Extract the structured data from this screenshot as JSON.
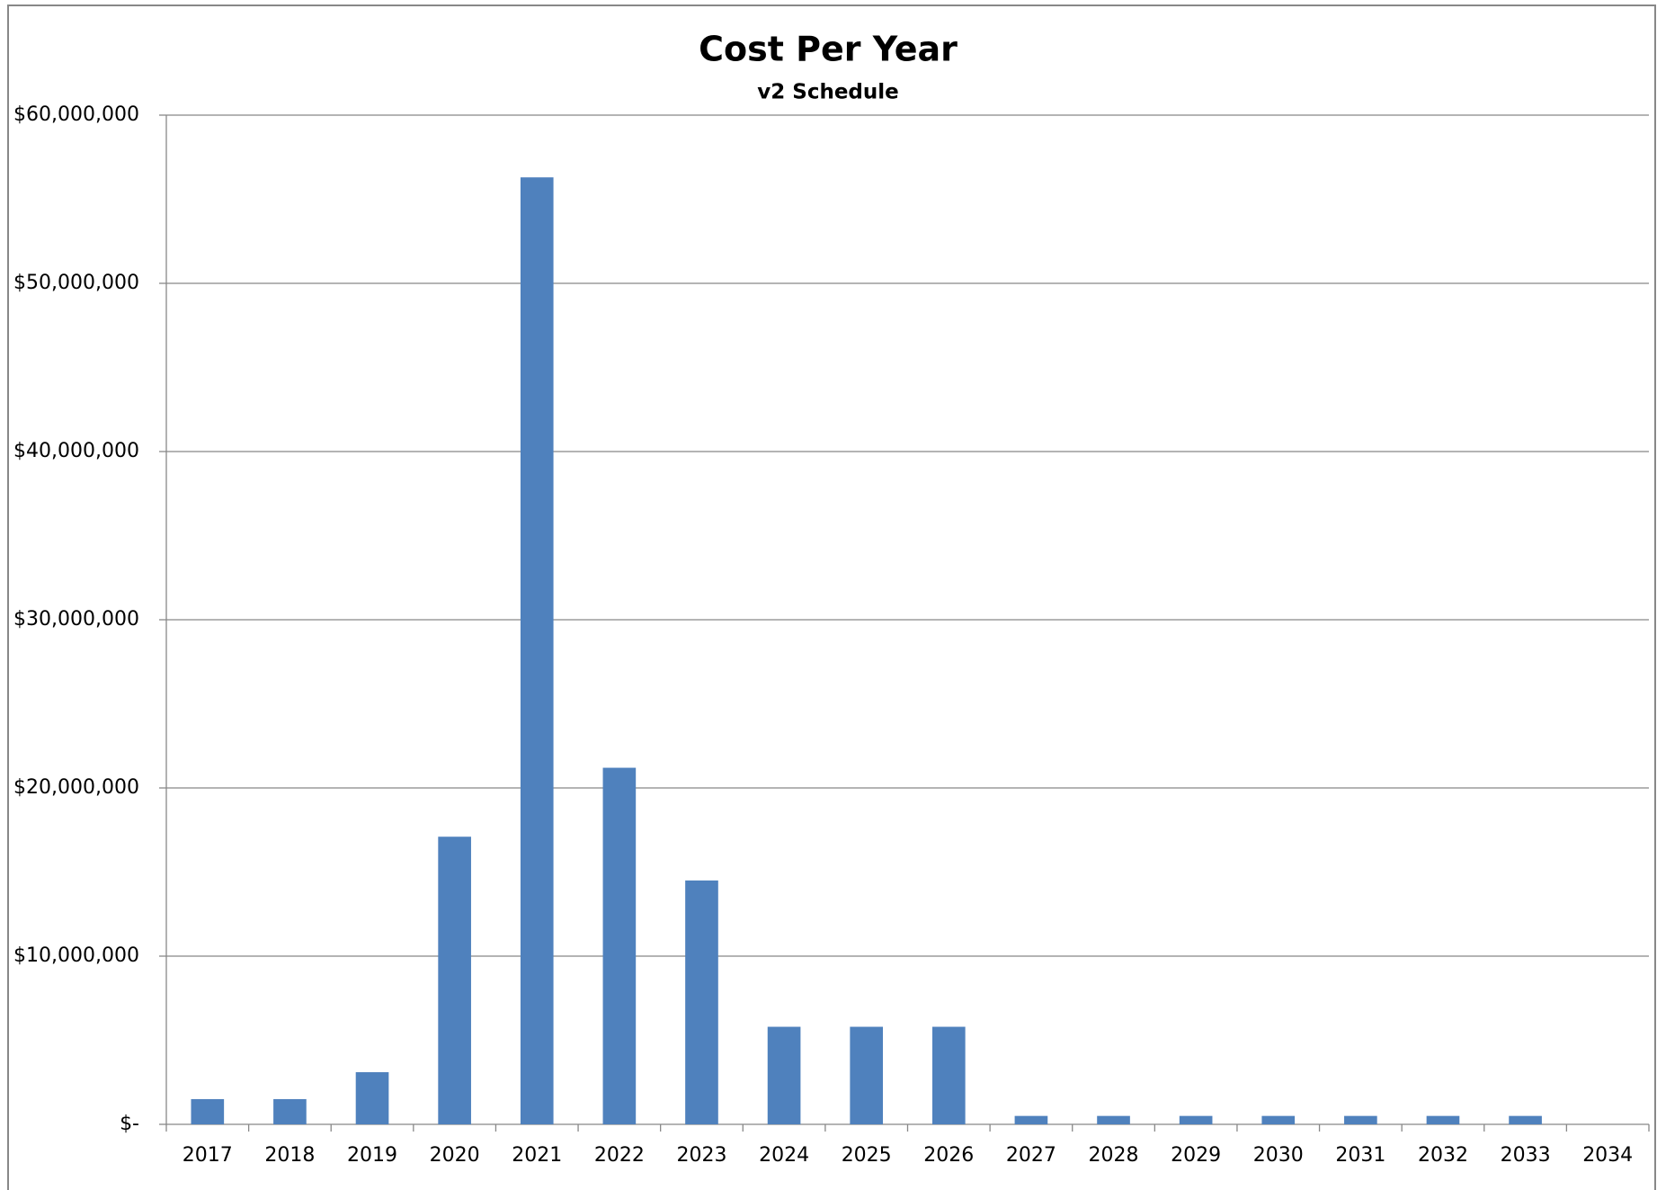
{
  "chart_data": {
    "type": "bar",
    "title": "Cost Per Year",
    "subtitle": "v2 Schedule",
    "categories": [
      "2017",
      "2018",
      "2019",
      "2020",
      "2021",
      "2022",
      "2023",
      "2024",
      "2025",
      "2026",
      "2027",
      "2028",
      "2029",
      "2030",
      "2031",
      "2032",
      "2033",
      "2034"
    ],
    "values": [
      1500000,
      1500000,
      3100000,
      17100000,
      56300000,
      21200000,
      14500000,
      5800000,
      5800000,
      5800000,
      500000,
      500000,
      500000,
      500000,
      500000,
      500000,
      500000,
      0
    ],
    "color": "#4f81bd",
    "ylim": [
      0,
      60000000
    ],
    "yticks": [
      {
        "value": 0,
        "label": "$-"
      },
      {
        "value": 10000000,
        "label": "$10,000,000"
      },
      {
        "value": 20000000,
        "label": "$20,000,000"
      },
      {
        "value": 30000000,
        "label": "$30,000,000"
      },
      {
        "value": 40000000,
        "label": "$40,000,000"
      },
      {
        "value": 50000000,
        "label": "$50,000,000"
      },
      {
        "value": 60000000,
        "label": "$60,000,000"
      }
    ],
    "grid": true
  }
}
